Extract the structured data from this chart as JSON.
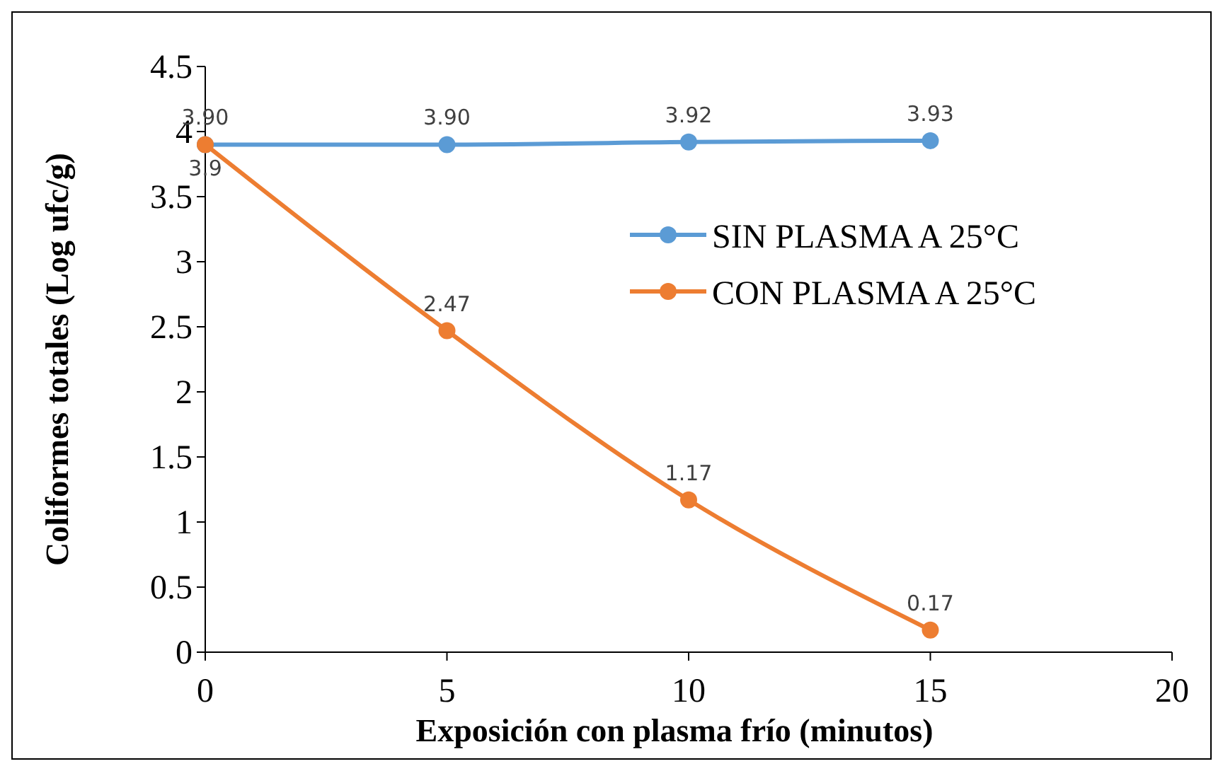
{
  "chart_data": {
    "type": "line",
    "xlabel": "Exposición con plasma frío (minutos)",
    "ylabel": "Coliformes totales (Log ufc/g)",
    "x": [
      0,
      5,
      10,
      15
    ],
    "series": [
      {
        "name": "SIN PLASMA A 25°C",
        "color": "#5b9bd5",
        "values": [
          3.9,
          3.9,
          3.92,
          3.93
        ],
        "value_labels": [
          "3.90",
          "3.90",
          "3.92",
          "3.93"
        ]
      },
      {
        "name": "CON PLASMA A 25°C",
        "color": "#ed7d31",
        "values": [
          3.9,
          2.47,
          1.17,
          0.17
        ],
        "value_labels": [
          "3.9",
          "2.47",
          "1.17",
          "0.17"
        ]
      }
    ],
    "xlim": [
      0,
      20
    ],
    "xticks": [
      0,
      5,
      10,
      15,
      20
    ],
    "ylim": [
      0,
      4.5
    ],
    "yticks": [
      0,
      0.5,
      1,
      1.5,
      2,
      2.5,
      3,
      3.5,
      4,
      4.5
    ],
    "grid": false,
    "legend": "right",
    "marker": "circle",
    "line_style": "solid"
  }
}
